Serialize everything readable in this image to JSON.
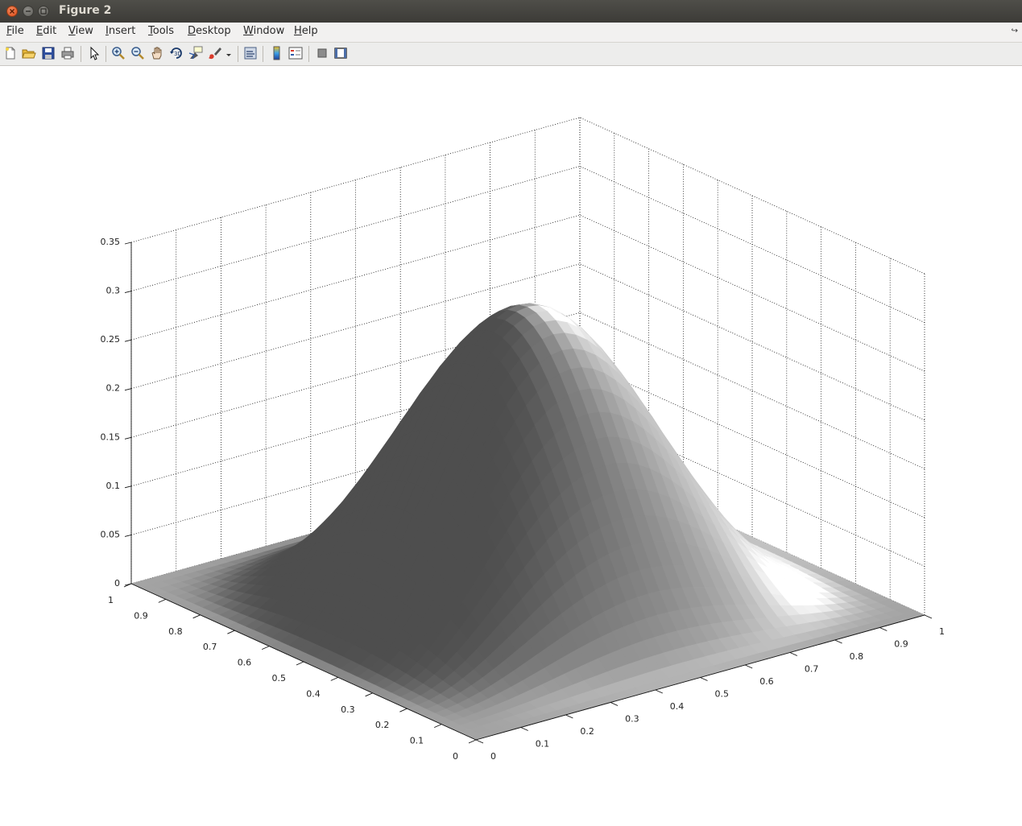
{
  "window": {
    "title": "Figure 2"
  },
  "menu": [
    "File",
    "Edit",
    "View",
    "Insert",
    "Tools",
    "Desktop",
    "Window",
    "Help"
  ],
  "toolbar": {
    "icons": [
      "new-figure-icon",
      "open-file-icon",
      "save-icon",
      "print-icon",
      "edit-plot-icon",
      "zoom-in-icon",
      "zoom-out-icon",
      "pan-icon",
      "rotate-3d-icon",
      "data-cursor-icon",
      "brush-icon",
      "brush-dropdown-icon",
      "link-plot-icon",
      "colorbar-icon",
      "legend-icon",
      "hide-plot-tools-icon",
      "show-plot-tools-icon"
    ]
  },
  "chart_data": {
    "type": "surface",
    "title": "",
    "shading": "interp, grayscale, lit",
    "xlim": [
      0,
      1
    ],
    "ylim": [
      0,
      1
    ],
    "zlim": [
      0,
      0.35
    ],
    "x_ticks": [
      "0",
      "0.1",
      "0.2",
      "0.3",
      "0.4",
      "0.5",
      "0.6",
      "0.7",
      "0.8",
      "0.9",
      "1"
    ],
    "y_ticks": [
      "0",
      "0.1",
      "0.2",
      "0.3",
      "0.4",
      "0.5",
      "0.6",
      "0.7",
      "0.8",
      "0.9",
      "1"
    ],
    "z_ticks": [
      "0",
      "0.05",
      "0.1",
      "0.15",
      "0.2",
      "0.25",
      "0.3",
      "0.35"
    ],
    "grid": true,
    "peak": {
      "x": 0.5,
      "y": 0.5,
      "z": 0.3
    },
    "surface_color": "#8a8a8a"
  }
}
